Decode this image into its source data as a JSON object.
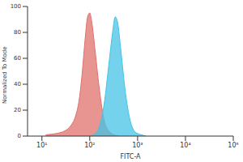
{
  "chart_data": {
    "type": "area",
    "x_label": "FITC-A",
    "y_label": "Normalized To Mode",
    "log": "x",
    "grid": false,
    "xlim": [
      5,
      100000
    ],
    "xticks": [
      {
        "value": 10,
        "label": "10¹"
      },
      {
        "value": 100,
        "label": "10²"
      },
      {
        "value": 1000,
        "label": "10³"
      },
      {
        "value": 10000,
        "label": "10⁴"
      },
      {
        "value": 100000,
        "label": "10⁵"
      }
    ],
    "ylim": [
      0,
      100
    ],
    "yticks": [
      0,
      20,
      40,
      60,
      80,
      100
    ],
    "series": [
      {
        "color": "#e0706c",
        "x": [
          12,
          20,
          30,
          40,
          50,
          60,
          70,
          80,
          90,
          100,
          110,
          130,
          160,
          200,
          250,
          320,
          400
        ],
        "values": [
          1,
          2,
          4,
          8,
          15,
          28,
          50,
          75,
          92,
          95,
          88,
          65,
          35,
          12,
          4,
          1,
          0
        ]
      },
      {
        "color": "#45c3e6",
        "x": [
          100,
          130,
          160,
          200,
          250,
          300,
          340,
          380,
          450,
          550,
          700,
          900,
          1200,
          1500
        ],
        "values": [
          0,
          2,
          8,
          25,
          55,
          80,
          92,
          88,
          65,
          35,
          12,
          3,
          1,
          0
        ]
      }
    ]
  }
}
